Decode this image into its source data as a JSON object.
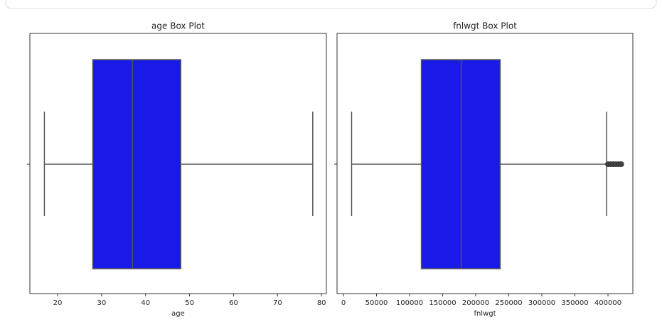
{
  "chart_data": [
    {
      "type": "box",
      "title": "age Box Plot",
      "xlabel": "age",
      "color": "#1a1ae8",
      "whislo": 17,
      "q1": 28,
      "med": 37,
      "q3": 48,
      "whishi": 78,
      "fliers": [],
      "xlim": [
        13.7,
        81.1
      ],
      "xticks": [
        20,
        30,
        40,
        50,
        60,
        70,
        80
      ]
    },
    {
      "type": "box",
      "title": "fnlwgt Box Plot",
      "xlabel": "fnlwgt",
      "color": "#1a1ae8",
      "whislo": 12285,
      "q1": 117800,
      "med": 178000,
      "q3": 237000,
      "whishi": 398000,
      "fliers": [
        400000,
        404000,
        408000,
        412000,
        416000,
        420000
      ],
      "xlim": [
        -9700,
        437600
      ],
      "xticks": [
        0,
        50000,
        100000,
        150000,
        200000,
        250000,
        300000,
        350000,
        400000
      ]
    }
  ]
}
